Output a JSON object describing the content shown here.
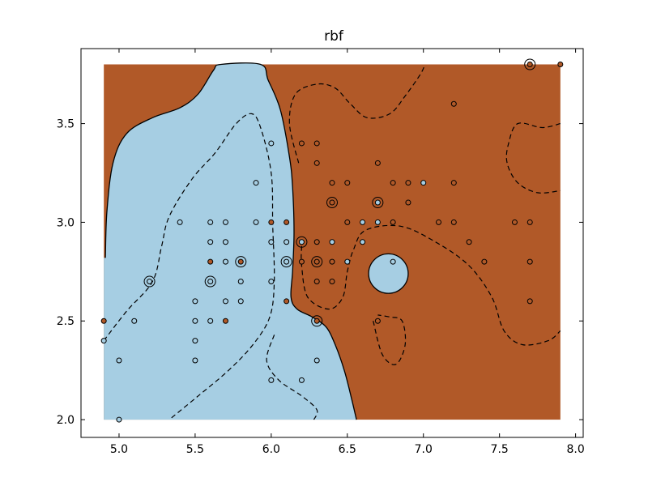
{
  "chart_data": {
    "type": "scatter",
    "title": "rbf",
    "xlabel": "",
    "ylabel": "",
    "xlim": [
      4.75,
      8.05
    ],
    "ylim": [
      1.91,
      3.88
    ],
    "xticks": [
      5.0,
      5.5,
      6.0,
      6.5,
      7.0,
      7.5,
      8.0
    ],
    "yticks": [
      2.0,
      2.5,
      3.0,
      3.5
    ],
    "xtick_labels": [
      "5.0",
      "5.5",
      "6.0",
      "6.5",
      "7.0",
      "7.5",
      "8.0"
    ],
    "ytick_labels": [
      "2.0",
      "2.5",
      "3.0",
      "3.5"
    ],
    "grid": false,
    "legend": "none",
    "region_extent": {
      "x": [
        4.9,
        7.9
      ],
      "y": [
        2.0,
        3.8
      ]
    },
    "colors": {
      "class_a": "#a6cee3",
      "class_b": "#b15928"
    },
    "decision_boundary": [
      [
        4.91,
        2.82
      ],
      [
        4.92,
        3.05
      ],
      [
        4.96,
        3.3
      ],
      [
        5.05,
        3.45
      ],
      [
        5.22,
        3.53
      ],
      [
        5.4,
        3.58
      ],
      [
        5.52,
        3.65
      ],
      [
        5.62,
        3.77
      ],
      [
        5.67,
        3.8
      ],
      [
        5.93,
        3.8
      ],
      [
        5.98,
        3.72
      ],
      [
        6.06,
        3.57
      ],
      [
        6.12,
        3.33
      ],
      [
        6.14,
        3.18
      ],
      [
        6.15,
        2.95
      ],
      [
        6.14,
        2.75
      ],
      [
        6.13,
        2.62
      ],
      [
        6.17,
        2.56
      ],
      [
        6.27,
        2.52
      ],
      [
        6.36,
        2.47
      ],
      [
        6.42,
        2.38
      ],
      [
        6.48,
        2.25
      ],
      [
        6.53,
        2.1
      ],
      [
        6.56,
        2.0
      ]
    ],
    "island": {
      "center": [
        6.77,
        2.74
      ],
      "rx": 0.13,
      "ry": 0.1
    },
    "margins": [
      [
        [
          4.9,
          2.4
        ],
        [
          5.05,
          2.55
        ],
        [
          5.22,
          2.7
        ],
        [
          5.28,
          2.88
        ],
        [
          5.33,
          3.03
        ],
        [
          5.48,
          3.22
        ],
        [
          5.63,
          3.35
        ],
        [
          5.77,
          3.5
        ],
        [
          5.87,
          3.55
        ],
        [
          5.93,
          3.48
        ],
        [
          6.0,
          3.25
        ],
        [
          6.01,
          2.98
        ],
        [
          6.02,
          2.7
        ],
        [
          5.99,
          2.52
        ],
        [
          5.88,
          2.38
        ],
        [
          5.72,
          2.25
        ],
        [
          5.52,
          2.12
        ],
        [
          5.33,
          2.0
        ]
      ],
      [
        [
          6.18,
          3.3
        ],
        [
          6.12,
          3.5
        ],
        [
          6.16,
          3.65
        ],
        [
          6.3,
          3.7
        ],
        [
          6.42,
          3.68
        ],
        [
          6.52,
          3.6
        ],
        [
          6.63,
          3.53
        ],
        [
          6.78,
          3.55
        ],
        [
          6.88,
          3.64
        ],
        [
          6.98,
          3.75
        ],
        [
          7.01,
          3.8
        ]
      ],
      [
        [
          6.2,
          2.88
        ],
        [
          6.2,
          2.78
        ],
        [
          6.24,
          2.62
        ],
        [
          6.38,
          2.56
        ],
        [
          6.47,
          2.62
        ],
        [
          6.5,
          2.75
        ],
        [
          6.54,
          2.86
        ],
        [
          6.62,
          2.96
        ],
        [
          6.85,
          2.98
        ],
        [
          7.08,
          2.9
        ],
        [
          7.3,
          2.78
        ],
        [
          7.45,
          2.62
        ],
        [
          7.53,
          2.45
        ],
        [
          7.65,
          2.38
        ],
        [
          7.82,
          2.4
        ],
        [
          7.9,
          2.45
        ]
      ],
      [
        [
          6.02,
          2.43
        ],
        [
          5.97,
          2.3
        ],
        [
          6.05,
          2.2
        ],
        [
          6.2,
          2.12
        ],
        [
          6.3,
          2.05
        ],
        [
          6.28,
          2.0
        ]
      ],
      [
        [
          6.67,
          2.5
        ],
        [
          6.73,
          2.33
        ],
        [
          6.82,
          2.28
        ],
        [
          6.88,
          2.38
        ],
        [
          6.86,
          2.5
        ],
        [
          6.78,
          2.52
        ],
        [
          6.7,
          2.53
        ]
      ],
      [
        [
          7.9,
          3.5
        ],
        [
          7.78,
          3.48
        ],
        [
          7.62,
          3.5
        ],
        [
          7.56,
          3.4
        ],
        [
          7.55,
          3.3
        ],
        [
          7.62,
          3.2
        ],
        [
          7.75,
          3.15
        ],
        [
          7.9,
          3.16
        ]
      ]
    ],
    "points": [
      {
        "x": 4.9,
        "y": 2.5,
        "c": "b"
      },
      {
        "x": 4.9,
        "y": 2.4,
        "c": "a"
      },
      {
        "x": 5.0,
        "y": 2.3,
        "c": "a"
      },
      {
        "x": 5.0,
        "y": 2.0,
        "c": "a"
      },
      {
        "x": 5.1,
        "y": 2.5,
        "c": "a"
      },
      {
        "x": 5.2,
        "y": 2.7,
        "c": "a",
        "sv": true
      },
      {
        "x": 5.4,
        "y": 3.0,
        "c": "a"
      },
      {
        "x": 5.5,
        "y": 2.6,
        "c": "a"
      },
      {
        "x": 5.5,
        "y": 2.5,
        "c": "a"
      },
      {
        "x": 5.5,
        "y": 2.4,
        "c": "a"
      },
      {
        "x": 5.5,
        "y": 2.3,
        "c": "a"
      },
      {
        "x": 5.6,
        "y": 3.0,
        "c": "a"
      },
      {
        "x": 5.6,
        "y": 2.9,
        "c": "a"
      },
      {
        "x": 5.6,
        "y": 2.8,
        "c": "b"
      },
      {
        "x": 5.6,
        "y": 2.7,
        "c": "a",
        "sv": true
      },
      {
        "x": 5.6,
        "y": 2.5,
        "c": "a"
      },
      {
        "x": 5.7,
        "y": 3.0,
        "c": "a"
      },
      {
        "x": 5.7,
        "y": 2.9,
        "c": "a"
      },
      {
        "x": 5.7,
        "y": 2.8,
        "c": "a"
      },
      {
        "x": 5.7,
        "y": 2.6,
        "c": "a"
      },
      {
        "x": 5.7,
        "y": 2.5,
        "c": "b"
      },
      {
        "x": 5.8,
        "y": 2.8,
        "c": "b",
        "sv": true
      },
      {
        "x": 5.8,
        "y": 2.7,
        "c": "a"
      },
      {
        "x": 5.8,
        "y": 2.6,
        "c": "a"
      },
      {
        "x": 5.9,
        "y": 3.2,
        "c": "a"
      },
      {
        "x": 5.9,
        "y": 3.0,
        "c": "a"
      },
      {
        "x": 6.0,
        "y": 3.4,
        "c": "a"
      },
      {
        "x": 6.0,
        "y": 3.0,
        "c": "b"
      },
      {
        "x": 6.0,
        "y": 2.9,
        "c": "a"
      },
      {
        "x": 6.0,
        "y": 2.7,
        "c": "a"
      },
      {
        "x": 6.0,
        "y": 2.2,
        "c": "a"
      },
      {
        "x": 6.1,
        "y": 3.0,
        "c": "b"
      },
      {
        "x": 6.1,
        "y": 2.9,
        "c": "a"
      },
      {
        "x": 6.1,
        "y": 2.8,
        "c": "a",
        "sv": true
      },
      {
        "x": 6.1,
        "y": 2.6,
        "c": "b"
      },
      {
        "x": 6.2,
        "y": 3.4,
        "c": "b"
      },
      {
        "x": 6.2,
        "y": 2.9,
        "c": "a",
        "sv": true
      },
      {
        "x": 6.2,
        "y": 2.8,
        "c": "b"
      },
      {
        "x": 6.2,
        "y": 2.2,
        "c": "a"
      },
      {
        "x": 6.3,
        "y": 3.4,
        "c": "b"
      },
      {
        "x": 6.3,
        "y": 3.3,
        "c": "b"
      },
      {
        "x": 6.3,
        "y": 2.9,
        "c": "b"
      },
      {
        "x": 6.3,
        "y": 2.8,
        "c": "b",
        "sv": true
      },
      {
        "x": 6.3,
        "y": 2.7,
        "c": "b"
      },
      {
        "x": 6.3,
        "y": 2.5,
        "c": "b",
        "sv": true
      },
      {
        "x": 6.3,
        "y": 2.3,
        "c": "a"
      },
      {
        "x": 6.4,
        "y": 3.2,
        "c": "b"
      },
      {
        "x": 6.4,
        "y": 3.1,
        "c": "b",
        "sv": true
      },
      {
        "x": 6.4,
        "y": 2.9,
        "c": "a"
      },
      {
        "x": 6.4,
        "y": 2.8,
        "c": "b"
      },
      {
        "x": 6.4,
        "y": 2.7,
        "c": "b"
      },
      {
        "x": 6.5,
        "y": 3.2,
        "c": "b"
      },
      {
        "x": 6.5,
        "y": 3.0,
        "c": "b"
      },
      {
        "x": 6.5,
        "y": 2.8,
        "c": "a"
      },
      {
        "x": 6.6,
        "y": 3.0,
        "c": "a"
      },
      {
        "x": 6.6,
        "y": 2.9,
        "c": "a"
      },
      {
        "x": 6.7,
        "y": 3.3,
        "c": "b"
      },
      {
        "x": 6.7,
        "y": 3.1,
        "c": "a",
        "sv": true
      },
      {
        "x": 6.7,
        "y": 3.0,
        "c": "a"
      },
      {
        "x": 6.7,
        "y": 2.5,
        "c": "b"
      },
      {
        "x": 6.8,
        "y": 3.2,
        "c": "b"
      },
      {
        "x": 6.8,
        "y": 3.0,
        "c": "b"
      },
      {
        "x": 6.8,
        "y": 2.8,
        "c": "a"
      },
      {
        "x": 6.9,
        "y": 3.2,
        "c": "b"
      },
      {
        "x": 6.9,
        "y": 3.1,
        "c": "b"
      },
      {
        "x": 7.0,
        "y": 3.2,
        "c": "a"
      },
      {
        "x": 7.1,
        "y": 3.0,
        "c": "b"
      },
      {
        "x": 7.2,
        "y": 3.6,
        "c": "b"
      },
      {
        "x": 7.2,
        "y": 3.2,
        "c": "b"
      },
      {
        "x": 7.2,
        "y": 3.0,
        "c": "b"
      },
      {
        "x": 7.3,
        "y": 2.9,
        "c": "b"
      },
      {
        "x": 7.4,
        "y": 2.8,
        "c": "b"
      },
      {
        "x": 7.6,
        "y": 3.0,
        "c": "b"
      },
      {
        "x": 7.7,
        "y": 3.8,
        "c": "b",
        "sv": true
      },
      {
        "x": 7.7,
        "y": 3.0,
        "c": "b"
      },
      {
        "x": 7.7,
        "y": 2.8,
        "c": "b"
      },
      {
        "x": 7.7,
        "y": 2.6,
        "c": "b"
      },
      {
        "x": 7.9,
        "y": 3.8,
        "c": "b"
      }
    ]
  }
}
